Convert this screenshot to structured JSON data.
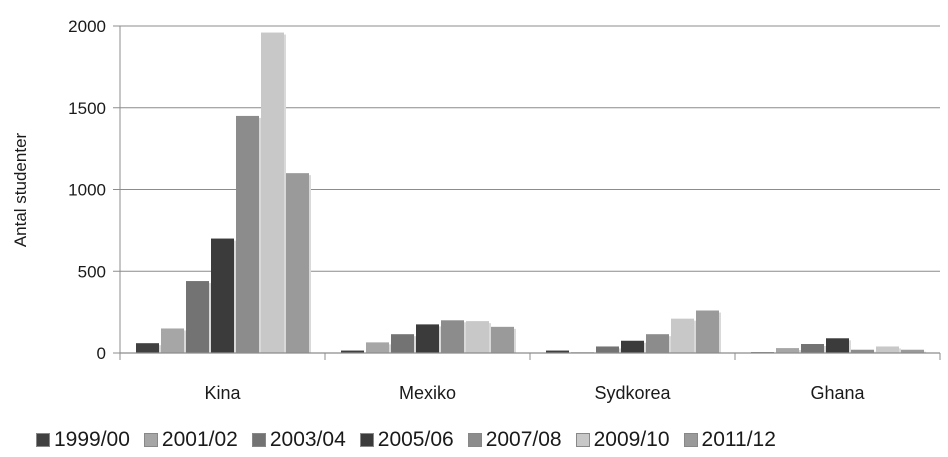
{
  "chart_data": {
    "type": "bar",
    "ylabel": "Antal studenter",
    "xlabel": "",
    "ylim": [
      0,
      2000
    ],
    "yticks": [
      "0",
      "500",
      "1000",
      "1500",
      "2000"
    ],
    "grid": true,
    "legend_position": "bottom",
    "categories": [
      "Kina",
      "Mexiko",
      "Sydkorea",
      "Ghana"
    ],
    "series": [
      {
        "name": "1999/00",
        "color": "#404040",
        "values": [
          60,
          15,
          15,
          5
        ]
      },
      {
        "name": "2001/02",
        "color": "#a6a6a6",
        "values": [
          150,
          65,
          5,
          30
        ]
      },
      {
        "name": "2003/04",
        "color": "#737373",
        "values": [
          440,
          115,
          40,
          55
        ]
      },
      {
        "name": "2005/06",
        "color": "#3b3b3b",
        "values": [
          700,
          175,
          75,
          90
        ]
      },
      {
        "name": "2007/08",
        "color": "#8c8c8c",
        "values": [
          1450,
          200,
          115,
          20
        ]
      },
      {
        "name": "2009/10",
        "color": "#c8c8c8",
        "values": [
          1960,
          195,
          210,
          40
        ]
      },
      {
        "name": "2011/12",
        "color": "#9a9a9a",
        "values": [
          1100,
          160,
          260,
          20
        ]
      }
    ]
  }
}
